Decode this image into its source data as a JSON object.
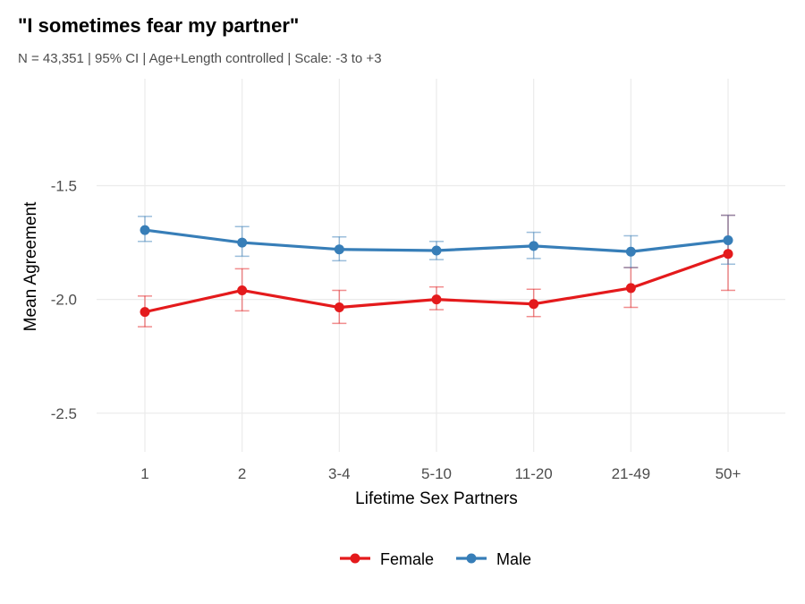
{
  "chart_data": {
    "type": "line",
    "title": "\"I sometimes fear my partner\"",
    "subtitle": "N = 43,351 | 95% CI | Age+Length controlled | Scale: -3 to +3",
    "xlabel": "Lifetime Sex Partners",
    "ylabel": "Mean Agreement",
    "categories": [
      "1",
      "2",
      "3-4",
      "5-10",
      "11-20",
      "21-49",
      "50+"
    ],
    "ylim": [
      -2.67,
      -1.03
    ],
    "yticks": [
      -1.5,
      -2.0,
      -2.5
    ],
    "ytick_labels": [
      "-1.5",
      "-2.0",
      "-2.5"
    ],
    "grid": true,
    "legend_position": "bottom",
    "series": [
      {
        "name": "Female",
        "color": "#e41a1c",
        "values": [
          -2.055,
          -1.96,
          -2.035,
          -2.0,
          -2.02,
          -1.95,
          -1.8
        ],
        "ci_low": [
          -2.12,
          -2.05,
          -2.105,
          -2.045,
          -2.075,
          -2.035,
          -1.96
        ],
        "ci_high": [
          -1.985,
          -1.865,
          -1.96,
          -1.945,
          -1.955,
          -1.86,
          -1.63
        ]
      },
      {
        "name": "Male",
        "color": "#377eb8",
        "values": [
          -1.695,
          -1.75,
          -1.78,
          -1.785,
          -1.765,
          -1.79,
          -1.74
        ],
        "ci_low": [
          -1.745,
          -1.81,
          -1.83,
          -1.825,
          -1.82,
          -1.86,
          -1.845
        ],
        "ci_high": [
          -1.635,
          -1.68,
          -1.725,
          -1.745,
          -1.705,
          -1.72,
          -1.63
        ]
      }
    ]
  }
}
